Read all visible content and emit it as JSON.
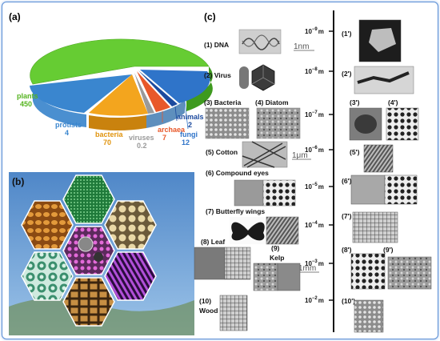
{
  "panels": {
    "a": "(a)",
    "b": "(b)",
    "c": "(c)"
  },
  "pie": {
    "slices": [
      {
        "name": "plants",
        "value": "450",
        "color": "#66cc33"
      },
      {
        "name": "protists",
        "value": "4",
        "color": "#3a86cf"
      },
      {
        "name": "bacteria",
        "value": "70",
        "color": "#f3a51e"
      },
      {
        "name": "viruses",
        "value": "0.2",
        "color": "#9a9a9a"
      },
      {
        "name": "archaea",
        "value": "7",
        "color": "#e8582a"
      },
      {
        "name": "animals",
        "value": "2",
        "color": "#1c4a9e"
      },
      {
        "name": "fungi",
        "value": "12",
        "color": "#2f74c9"
      }
    ]
  },
  "scale": {
    "ticks": [
      {
        "base": "10",
        "exp": "−9",
        "unit": "m"
      },
      {
        "base": "10",
        "exp": "−8",
        "unit": "m"
      },
      {
        "base": "10",
        "exp": "−7",
        "unit": "m"
      },
      {
        "base": "10",
        "exp": "−6",
        "unit": "m"
      },
      {
        "base": "10",
        "exp": "−5",
        "unit": "m"
      },
      {
        "base": "10",
        "exp": "−4",
        "unit": "m"
      },
      {
        "base": "10",
        "exp": "−3",
        "unit": "m"
      },
      {
        "base": "10",
        "exp": "−2",
        "unit": "m"
      }
    ],
    "markers": [
      "1nm",
      "1μm",
      "1mm"
    ]
  },
  "items": {
    "dna": "(1) DNA",
    "virus": "(2) Virus",
    "bacteria": "(3) Bacteria",
    "diatom": "(4) Diatom",
    "cotton": "(5) Cotton",
    "eyes": "(6) Compound eyes",
    "wings": "(7) Butterfly wings",
    "leaf": "(8) Leaf",
    "kelp_num": "(9)",
    "kelp": "Kelp",
    "wood_num": "(10)",
    "wood": "Wood"
  },
  "primes": [
    "(1')",
    "(2')",
    "(3')",
    "(4')",
    "(5')",
    "(6')",
    "(7')",
    "(8')",
    "(9')",
    "(10')"
  ]
}
